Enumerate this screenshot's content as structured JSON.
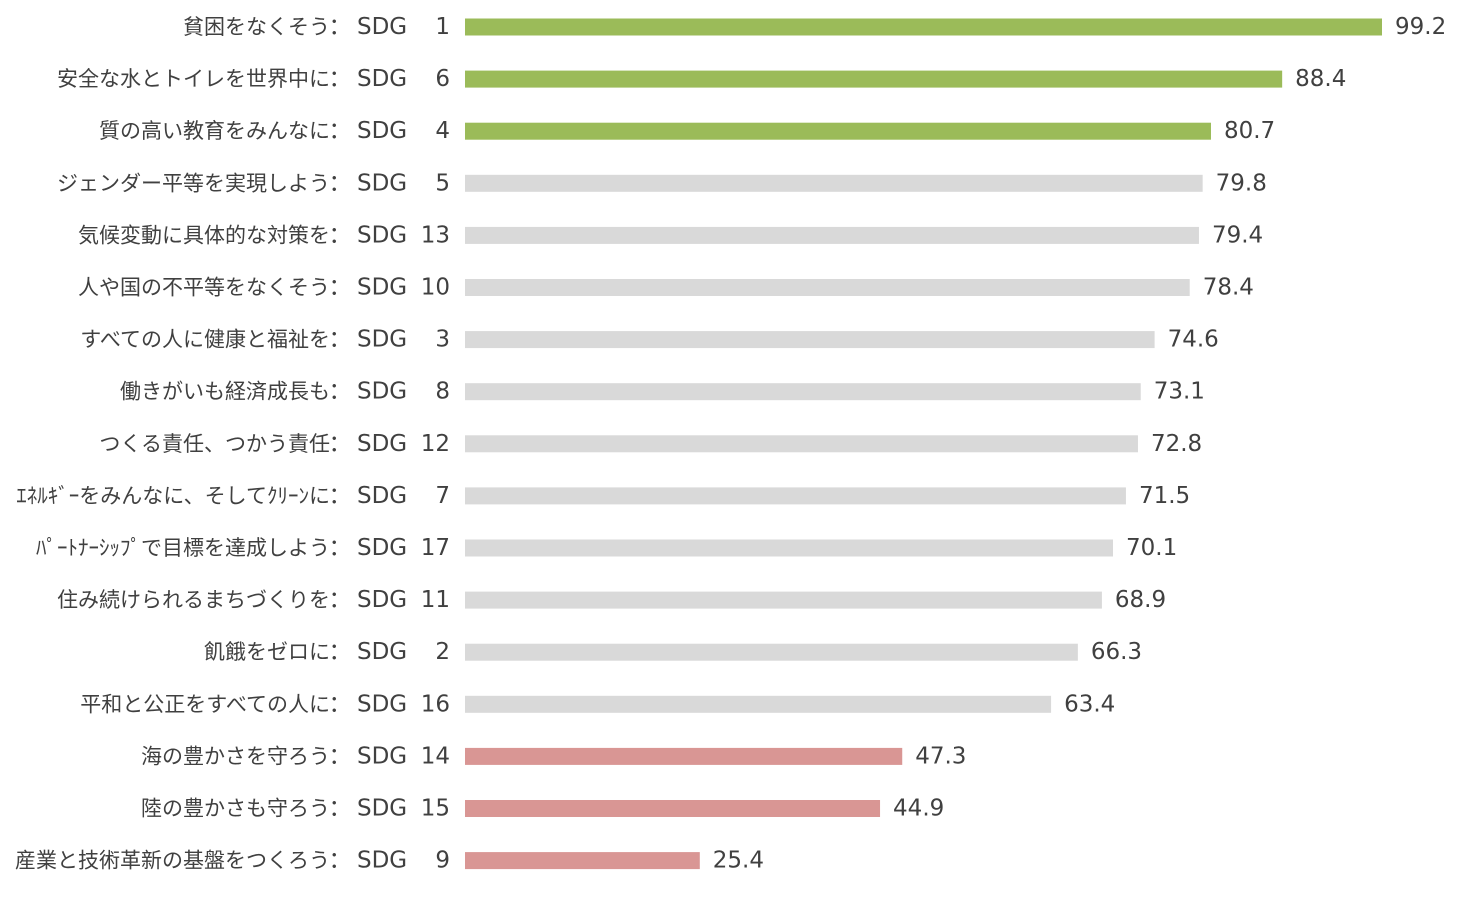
{
  "chart_data": {
    "type": "bar",
    "orientation": "horizontal",
    "xlim": [
      0,
      100
    ],
    "grid": false,
    "legend": "none",
    "colors": {
      "top": "#9bbb59",
      "middle": "#d9d9d9",
      "bottom": "#d99694",
      "text": "#404040"
    },
    "bars": [
      {
        "name": "貧困をなくそう",
        "sep": "：",
        "sdg": "SDG",
        "num": "1",
        "value": 99.2,
        "value_label": "99.2",
        "group": "top"
      },
      {
        "name": "安全な水とトイレを世界中に",
        "sep": "：",
        "sdg": "SDG",
        "num": "6",
        "value": 88.4,
        "value_label": "88.4",
        "group": "top"
      },
      {
        "name": "質の高い教育をみんなに",
        "sep": "：",
        "sdg": "SDG",
        "num": "4",
        "value": 80.7,
        "value_label": "80.7",
        "group": "top"
      },
      {
        "name": "ジェンダー平等を実現しよう",
        "sep": "：",
        "sdg": "SDG",
        "num": "5",
        "value": 79.8,
        "value_label": "79.8",
        "group": "middle"
      },
      {
        "name": "気候変動に具体的な対策を",
        "sep": "：",
        "sdg": "SDG",
        "num": "13",
        "value": 79.4,
        "value_label": "79.4",
        "group": "middle"
      },
      {
        "name": "人や国の不平等をなくそう",
        "sep": "：",
        "sdg": "SDG",
        "num": "10",
        "value": 78.4,
        "value_label": "78.4",
        "group": "middle"
      },
      {
        "name": "すべての人に健康と福祉を",
        "sep": "：",
        "sdg": "SDG",
        "num": "3",
        "value": 74.6,
        "value_label": "74.6",
        "group": "middle"
      },
      {
        "name": "働きがいも経済成長も",
        "sep": "：",
        "sdg": "SDG",
        "num": "8",
        "value": 73.1,
        "value_label": "73.1",
        "group": "middle"
      },
      {
        "name": "つくる責任、つかう責任",
        "sep": "：",
        "sdg": "SDG",
        "num": "12",
        "value": 72.8,
        "value_label": "72.8",
        "group": "middle"
      },
      {
        "name": "ｴﾈﾙｷﾞｰをみんなに、そしてｸﾘｰﾝに",
        "sep": "：",
        "sdg": "SDG",
        "num": "7",
        "value": 71.5,
        "value_label": "71.5",
        "group": "middle"
      },
      {
        "name": "ﾊﾟｰﾄﾅｰｼｯﾌﾟで目標を達成しよう",
        "sep": "：",
        "sdg": "SDG",
        "num": "17",
        "value": 70.1,
        "value_label": "70.1",
        "group": "middle"
      },
      {
        "name": "住み続けられるまちづくりを",
        "sep": "：",
        "sdg": "SDG",
        "num": "11",
        "value": 68.9,
        "value_label": "68.9",
        "group": "middle"
      },
      {
        "name": "飢餓をゼロに",
        "sep": "：",
        "sdg": "SDG",
        "num": "2",
        "value": 66.3,
        "value_label": "66.3",
        "group": "middle"
      },
      {
        "name": "平和と公正をすべての人に",
        "sep": "：",
        "sdg": "SDG",
        "num": "16",
        "value": 63.4,
        "value_label": "63.4",
        "group": "middle"
      },
      {
        "name": "海の豊かさを守ろう",
        "sep": "：",
        "sdg": "SDG",
        "num": "14",
        "value": 47.3,
        "value_label": "47.3",
        "group": "bottom"
      },
      {
        "name": "陸の豊かさも守ろう",
        "sep": "：",
        "sdg": "SDG",
        "num": "15",
        "value": 44.9,
        "value_label": "44.9",
        "group": "bottom"
      },
      {
        "name": "産業と技術革新の基盤をつくろう",
        "sep": "：",
        "sdg": "SDG",
        "num": "9",
        "value": 25.4,
        "value_label": "25.4",
        "group": "bottom"
      }
    ]
  }
}
